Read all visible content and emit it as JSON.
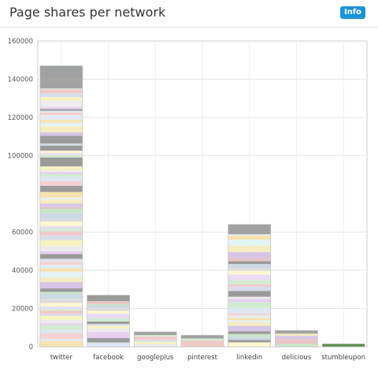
{
  "header": {
    "title": "Page shares per network",
    "info_label": "Info"
  },
  "colors": {
    "accent": "#1a93d6",
    "stumbleupon_bar": "#5c8f4e",
    "dark_band": "#9a9a9a"
  },
  "chart_data": {
    "type": "bar",
    "stacked": true,
    "grid": true,
    "categories": [
      "twitter",
      "facebook",
      "googleplus",
      "pinterest",
      "linkedin",
      "delicious",
      "stumbleupon"
    ],
    "values": [
      147000,
      27000,
      7800,
      6000,
      64000,
      8500,
      1500
    ],
    "y_ticks": [
      {
        "label": "0",
        "value": 0
      },
      {
        "label": "20000",
        "value": 20000
      },
      {
        "label": "40000",
        "value": 40000
      },
      {
        "label": "60000",
        "value": 60000
      },
      {
        "label": "100000",
        "value": 100000
      },
      {
        "label": "120000",
        "value": 120000
      },
      {
        "label": "140000",
        "value": 140000
      },
      {
        "label": "160000",
        "value": 160000
      }
    ],
    "ylim": [
      0,
      160000
    ]
  }
}
